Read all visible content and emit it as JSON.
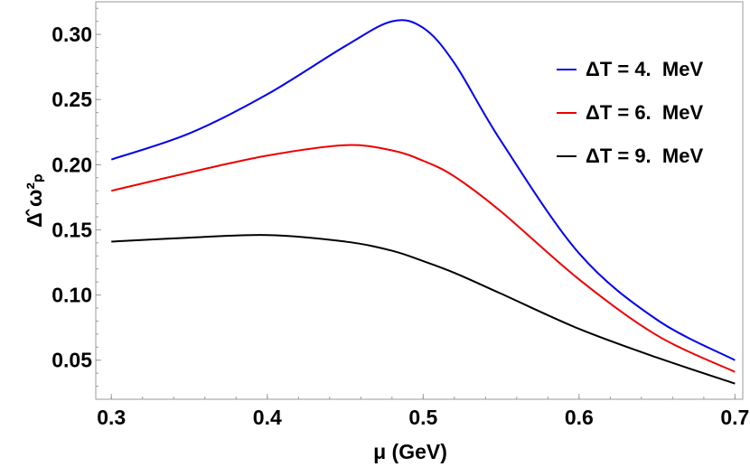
{
  "chart_data": {
    "type": "line",
    "title": "",
    "xlabel": "μ (GeV)",
    "ylabel": "Δ̂ ω²ₚ",
    "xlim": [
      0.29,
      0.705
    ],
    "ylim": [
      0.02,
      0.325
    ],
    "grid": false,
    "legend_position": "top-right",
    "x_ticks": [
      0.3,
      0.4,
      0.5,
      0.6,
      0.7
    ],
    "x_tick_labels": [
      "0.3",
      "0.4",
      "0.5",
      "0.6",
      "0.7"
    ],
    "y_ticks": [
      0.05,
      0.1,
      0.15,
      0.2,
      0.25,
      0.3
    ],
    "y_tick_labels": [
      "0.05",
      "0.10",
      "0.15",
      "0.20",
      "0.25",
      "0.30"
    ],
    "x": [
      0.3,
      0.35,
      0.4,
      0.45,
      0.48,
      0.5,
      0.52,
      0.55,
      0.6,
      0.65,
      0.7
    ],
    "series": [
      {
        "name": "ΔT = 4.  MeV",
        "color": "#0000ee",
        "values": [
          0.204,
          0.224,
          0.254,
          0.291,
          0.31,
          0.305,
          0.278,
          0.218,
          0.132,
          0.081,
          0.05
        ]
      },
      {
        "name": "ΔT = 6.  MeV",
        "color": "#ee0000",
        "values": [
          0.18,
          0.194,
          0.207,
          0.215,
          0.211,
          0.203,
          0.191,
          0.164,
          0.112,
          0.069,
          0.041
        ]
      },
      {
        "name": "ΔT = 9.  MeV",
        "color": "#000000",
        "values": [
          0.141,
          0.144,
          0.146,
          0.141,
          0.134,
          0.126,
          0.117,
          0.101,
          0.074,
          0.052,
          0.032
        ]
      }
    ]
  }
}
